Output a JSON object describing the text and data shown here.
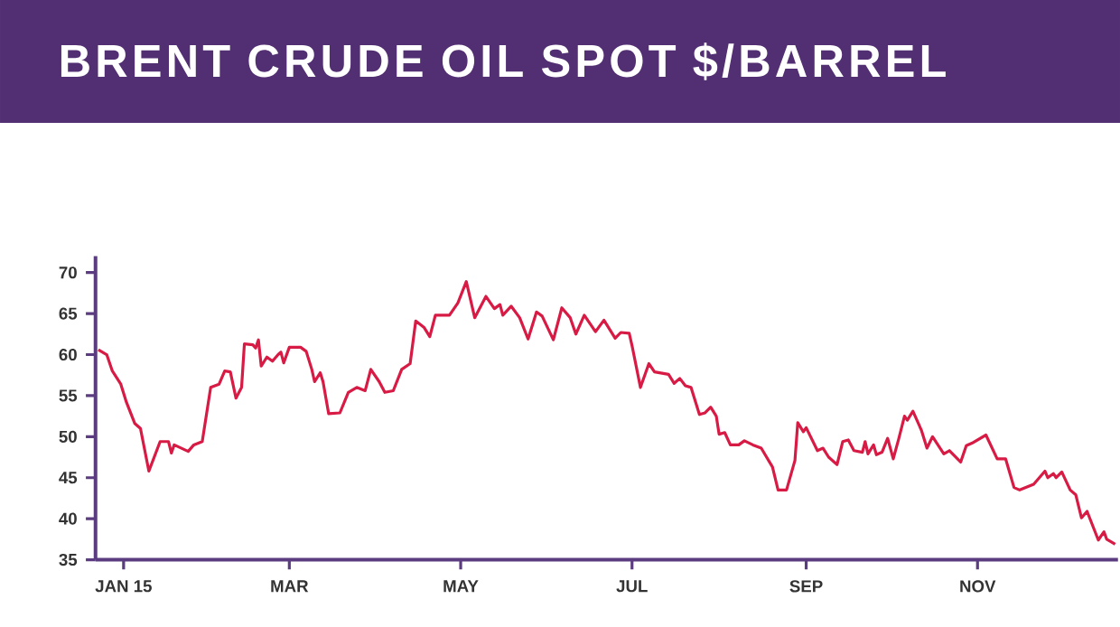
{
  "chart_data": {
    "type": "line",
    "title": "BRENT CRUDE OIL SPOT $/BARREL",
    "color": "#d81b45",
    "line_style": "solid",
    "x": [
      "2014-12-23",
      "2014-12-26",
      "2014-12-28",
      "2014-12-31",
      "2015-01-02",
      "2015-01-05",
      "2015-01-07",
      "2015-01-10",
      "2015-01-14",
      "2015-01-17",
      "2015-01-18",
      "2015-01-19",
      "2015-01-24",
      "2015-01-26",
      "2015-01-29",
      "2015-02-01",
      "2015-02-04",
      "2015-02-06",
      "2015-02-08",
      "2015-02-10",
      "2015-02-12",
      "2015-02-13",
      "2015-02-16",
      "2015-02-17",
      "2015-02-18",
      "2015-02-19",
      "2015-02-21",
      "2015-02-23",
      "2015-02-25",
      "2015-02-26",
      "2015-02-27",
      "2015-03-01",
      "2015-03-05",
      "2015-03-07",
      "2015-03-09",
      "2015-03-10",
      "2015-03-12",
      "2015-03-13",
      "2015-03-15",
      "2015-03-19",
      "2015-03-22",
      "2015-03-25",
      "2015-03-28",
      "2015-03-30",
      "2015-04-02",
      "2015-04-04",
      "2015-04-07",
      "2015-04-10",
      "2015-04-13",
      "2015-04-15",
      "2015-04-18",
      "2015-04-20",
      "2015-04-22",
      "2015-04-27",
      "2015-04-30",
      "2015-05-03",
      "2015-05-06",
      "2015-05-10",
      "2015-05-13",
      "2015-05-15",
      "2015-05-16",
      "2015-05-19",
      "2015-05-22",
      "2015-05-25",
      "2015-05-28",
      "2015-05-30",
      "2015-06-03",
      "2015-06-06",
      "2015-06-09",
      "2015-06-11",
      "2015-06-14",
      "2015-06-18",
      "2015-06-21",
      "2015-06-25",
      "2015-06-27",
      "2015-06-30",
      "2015-07-01",
      "2015-07-04",
      "2015-07-07",
      "2015-07-09",
      "2015-07-14",
      "2015-07-16",
      "2015-07-18",
      "2015-07-20",
      "2015-07-22",
      "2015-07-25",
      "2015-07-27",
      "2015-07-29",
      "2015-07-31",
      "2015-08-01",
      "2015-08-03",
      "2015-08-05",
      "2015-08-08",
      "2015-08-10",
      "2015-08-13",
      "2015-08-16",
      "2015-08-20",
      "2015-08-22",
      "2015-08-25",
      "2015-08-28",
      "2015-08-29",
      "2015-08-31",
      "2015-09-01",
      "2015-09-05",
      "2015-09-07",
      "2015-09-09",
      "2015-09-12",
      "2015-09-14",
      "2015-09-16",
      "2015-09-18",
      "2015-09-21",
      "2015-09-22",
      "2015-09-23",
      "2015-09-25",
      "2015-09-26",
      "2015-09-28",
      "2015-09-30",
      "2015-10-02",
      "2015-10-04",
      "2015-10-06",
      "2015-10-07",
      "2015-10-09",
      "2015-10-12",
      "2015-10-14",
      "2015-10-16",
      "2015-10-20",
      "2015-10-22",
      "2015-10-24",
      "2015-10-26",
      "2015-10-28",
      "2015-10-30",
      "2015-11-04",
      "2015-11-08",
      "2015-11-11",
      "2015-11-14",
      "2015-11-16",
      "2015-11-21",
      "2015-11-25",
      "2015-11-26",
      "2015-11-28",
      "2015-11-29",
      "2015-12-01",
      "2015-12-04",
      "2015-12-06",
      "2015-12-08",
      "2015-12-10",
      "2015-12-14",
      "2015-12-16",
      "2015-12-17",
      "2015-12-20"
    ],
    "values": [
      60.6,
      60.0,
      58.0,
      56.4,
      54.2,
      51.6,
      51.0,
      45.8,
      49.4,
      49.4,
      48.0,
      49.0,
      48.2,
      49.0,
      49.4,
      56.0,
      56.4,
      58.0,
      57.9,
      54.7,
      56.0,
      61.3,
      61.2,
      60.8,
      61.8,
      58.6,
      59.7,
      59.2,
      60.0,
      60.3,
      59.0,
      60.9,
      60.9,
      60.4,
      58.2,
      56.7,
      57.8,
      56.7,
      52.8,
      52.9,
      55.4,
      56.0,
      55.6,
      58.2,
      56.7,
      55.4,
      55.6,
      58.2,
      58.9,
      64.1,
      63.3,
      62.2,
      64.8,
      64.8,
      66.3,
      68.9,
      64.5,
      67.1,
      65.6,
      66.1,
      64.8,
      65.9,
      64.5,
      61.9,
      65.2,
      64.7,
      61.8,
      65.7,
      64.5,
      62.5,
      64.8,
      62.8,
      64.2,
      62.0,
      62.7,
      62.6,
      61.1,
      56.0,
      58.9,
      57.9,
      57.6,
      56.5,
      57.1,
      56.2,
      56.0,
      52.7,
      52.9,
      53.6,
      52.5,
      50.3,
      50.5,
      49.0,
      49.0,
      49.5,
      49.0,
      48.6,
      46.3,
      43.5,
      43.5,
      47.1,
      51.7,
      50.6,
      51.1,
      48.3,
      48.6,
      47.5,
      46.6,
      49.4,
      49.6,
      48.3,
      48.1,
      49.4,
      47.9,
      49.0,
      47.8,
      48.1,
      49.8,
      47.3,
      49.8,
      52.5,
      52.0,
      53.1,
      50.8,
      48.6,
      50.0,
      47.9,
      48.3,
      47.6,
      46.9,
      48.9,
      49.2,
      50.2,
      47.3,
      47.3,
      43.8,
      43.5,
      44.2,
      45.8,
      45.0,
      45.5,
      45.0,
      45.7,
      43.5,
      42.9,
      40.1,
      40.9,
      37.4,
      38.4,
      37.5,
      36.9
    ],
    "xlim": [
      "2014-12-22",
      "2015-12-21"
    ],
    "ylim": [
      35,
      72
    ],
    "xticks": [
      {
        "value": "2015-01-01",
        "label": "JAN 15"
      },
      {
        "value": "2015-03-01",
        "label": "MAR"
      },
      {
        "value": "2015-05-01",
        "label": "MAY"
      },
      {
        "value": "2015-07-01",
        "label": "JUL"
      },
      {
        "value": "2015-09-01",
        "label": "SEP"
      },
      {
        "value": "2015-11-01",
        "label": "NOV"
      }
    ],
    "yticks": [
      35,
      40,
      45,
      50,
      55,
      60,
      65,
      70
    ]
  }
}
